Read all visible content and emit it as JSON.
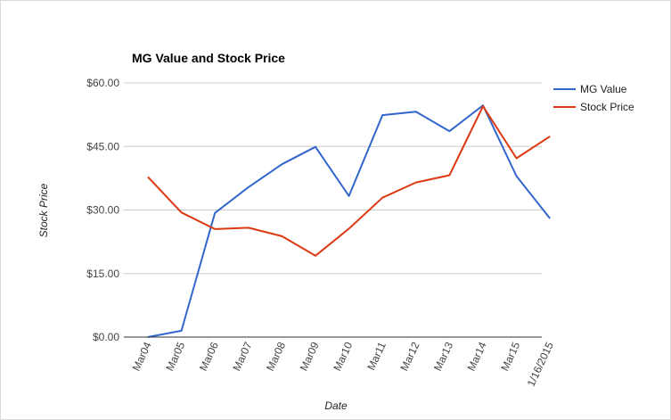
{
  "chart_data": {
    "type": "line",
    "title": "MG Value and Stock Price",
    "xlabel": "Date",
    "ylabel": "Stock Price",
    "categories": [
      "Mar04",
      "Mar05",
      "Mar06",
      "Mar07",
      "Mar08",
      "Mar09",
      "Mar10",
      "Mar11",
      "Mar12",
      "Mar13",
      "Mar14",
      "Mar15",
      "1/16/2015"
    ],
    "y_ticks": [
      "$0.00",
      "$15.00",
      "$30.00",
      "$45.00",
      "$60.00"
    ],
    "ylim": [
      0,
      60
    ],
    "grid": true,
    "legend_position": "right",
    "series": [
      {
        "name": "MG Value",
        "color": "#3366cc",
        "values": [
          0.0,
          1.5,
          29.3,
          35.4,
          40.8,
          44.9,
          33.3,
          52.4,
          53.2,
          48.6,
          54.7,
          38.0,
          28.0
        ]
      },
      {
        "name": "Stock Price",
        "color": "#dc3912",
        "values": [
          37.8,
          29.4,
          25.5,
          25.8,
          23.8,
          19.2,
          25.6,
          32.9,
          36.5,
          38.2,
          54.5,
          42.2,
          47.4
        ]
      }
    ]
  }
}
